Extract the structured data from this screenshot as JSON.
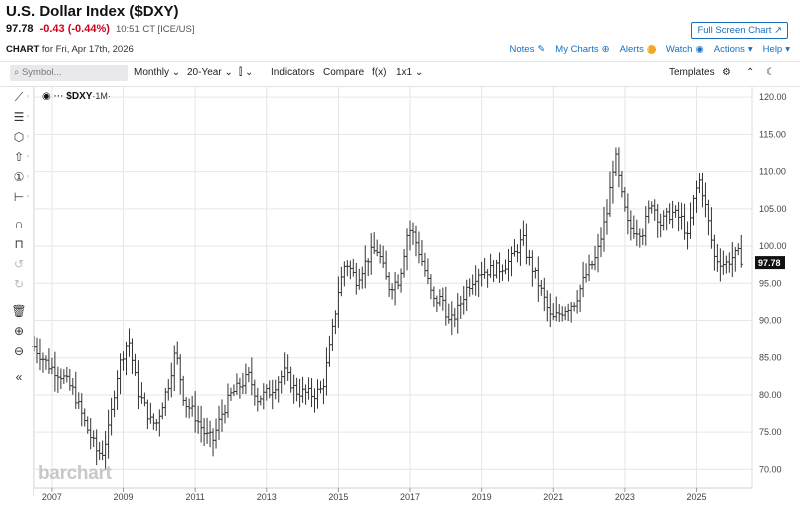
{
  "header": {
    "title": "U.S. Dollar Index ($DXY)",
    "last": "97.78",
    "change": "-0.43 (-0.44%)",
    "time": "10:51 CT [ICE/US]",
    "full_screen": "Full Screen Chart",
    "chart_label": "CHART",
    "chart_date": "for Fri, Apr 17th, 2026"
  },
  "links": {
    "notes": "Notes",
    "my_charts": "My Charts",
    "alerts": "Alerts",
    "watch": "Watch",
    "actions": "Actions",
    "help": "Help"
  },
  "toolbar": {
    "search_placeholder": "Symbol...",
    "period": "Monthly",
    "range": "20-Year",
    "indicators": "Indicators",
    "compare": "Compare",
    "fx": "f(x)",
    "layout": "1x1",
    "templates": "Templates"
  },
  "legend": {
    "symbol": "$DXY",
    "period": "·1M·"
  },
  "watermark": "barchart",
  "icons": [
    "eye-icon",
    "pencil-icon",
    "fib-icon",
    "shape-icon",
    "arrow-up-icon",
    "annotation-icon",
    "measure-icon",
    "magnet-icon",
    "lock-icon",
    "undo-icon",
    "redo-icon",
    "trash-icon",
    "zoom-in-icon",
    "zoom-out-icon",
    "collapse-icon",
    "gear-icon",
    "moon-icon",
    "chevron-up-icon"
  ],
  "colors": {
    "accent": "#1a6fc0",
    "down": "#d0021b",
    "bars": "#333333",
    "grid": "#e6e6e6"
  },
  "chart_data": {
    "type": "ohlc",
    "title": "U.S. Dollar Index ($DXY)",
    "x_ticks": [
      "2007",
      "2009",
      "2011",
      "2013",
      "2015",
      "2017",
      "2019",
      "2021",
      "2023",
      "2025"
    ],
    "y_ticks": [
      "70.00",
      "75.00",
      "80.00",
      "85.00",
      "90.00",
      "95.00",
      "100.00",
      "105.00",
      "110.00",
      "115.00",
      "120.00"
    ],
    "ylim": [
      67.5,
      121.5
    ],
    "xlim": [
      2006.5,
      2026.55
    ],
    "last_price_label": "97.78",
    "last_price": 97.78,
    "anchors": [
      [
        2006.5,
        86.5
      ],
      [
        2006.9,
        84.0
      ],
      [
        2007.3,
        82.5
      ],
      [
        2007.6,
        80.5
      ],
      [
        2007.9,
        76.5
      ],
      [
        2008.25,
        72.5
      ],
      [
        2008.4,
        72.0
      ],
      [
        2008.6,
        75.5
      ],
      [
        2008.8,
        82.0
      ],
      [
        2008.95,
        85.0
      ],
      [
        2009.15,
        87.5
      ],
      [
        2009.4,
        80.5
      ],
      [
        2009.75,
        76.5
      ],
      [
        2009.9,
        76.0
      ],
      [
        2010.25,
        81.5
      ],
      [
        2010.45,
        86.0
      ],
      [
        2010.7,
        79.0
      ],
      [
        2010.9,
        78.0
      ],
      [
        2011.3,
        74.5
      ],
      [
        2011.5,
        74.0
      ],
      [
        2011.75,
        77.5
      ],
      [
        2012.0,
        80.0
      ],
      [
        2012.5,
        82.5
      ],
      [
        2012.75,
        79.5
      ],
      [
        2013.1,
        80.5
      ],
      [
        2013.5,
        83.0
      ],
      [
        2013.8,
        80.5
      ],
      [
        2014.3,
        80.0
      ],
      [
        2014.55,
        80.8
      ],
      [
        2014.8,
        87.5
      ],
      [
        2015.0,
        94.0
      ],
      [
        2015.2,
        98.0
      ],
      [
        2015.5,
        95.5
      ],
      [
        2015.9,
        99.0
      ],
      [
        2016.1,
        99.5
      ],
      [
        2016.4,
        94.5
      ],
      [
        2016.7,
        95.5
      ],
      [
        2016.95,
        102.5
      ],
      [
        2017.1,
        101.5
      ],
      [
        2017.4,
        97.0
      ],
      [
        2017.65,
        92.5
      ],
      [
        2017.9,
        93.0
      ],
      [
        2018.1,
        89.5
      ],
      [
        2018.3,
        91.0
      ],
      [
        2018.6,
        94.5
      ],
      [
        2018.9,
        96.5
      ],
      [
        2019.5,
        97.0
      ],
      [
        2019.8,
        98.0
      ],
      [
        2020.15,
        101.0
      ],
      [
        2020.25,
        99.0
      ],
      [
        2020.5,
        96.0
      ],
      [
        2020.7,
        93.5
      ],
      [
        2020.95,
        90.0
      ],
      [
        2021.3,
        91.5
      ],
      [
        2021.6,
        92.5
      ],
      [
        2021.9,
        96.0
      ],
      [
        2022.2,
        98.5
      ],
      [
        2022.5,
        104.5
      ],
      [
        2022.72,
        112.5
      ],
      [
        2022.9,
        107.0
      ],
      [
        2023.1,
        102.5
      ],
      [
        2023.5,
        102.0
      ],
      [
        2023.75,
        106.0
      ],
      [
        2024.0,
        103.0
      ],
      [
        2024.3,
        104.5
      ],
      [
        2024.6,
        103.5
      ],
      [
        2024.75,
        101.0
      ],
      [
        2024.95,
        107.0
      ],
      [
        2025.1,
        109.0
      ],
      [
        2025.3,
        104.0
      ],
      [
        2025.5,
        98.5
      ],
      [
        2025.8,
        97.5
      ],
      [
        2026.0,
        98.5
      ],
      [
        2026.2,
        99.0
      ],
      [
        2026.29,
        97.78
      ]
    ]
  }
}
